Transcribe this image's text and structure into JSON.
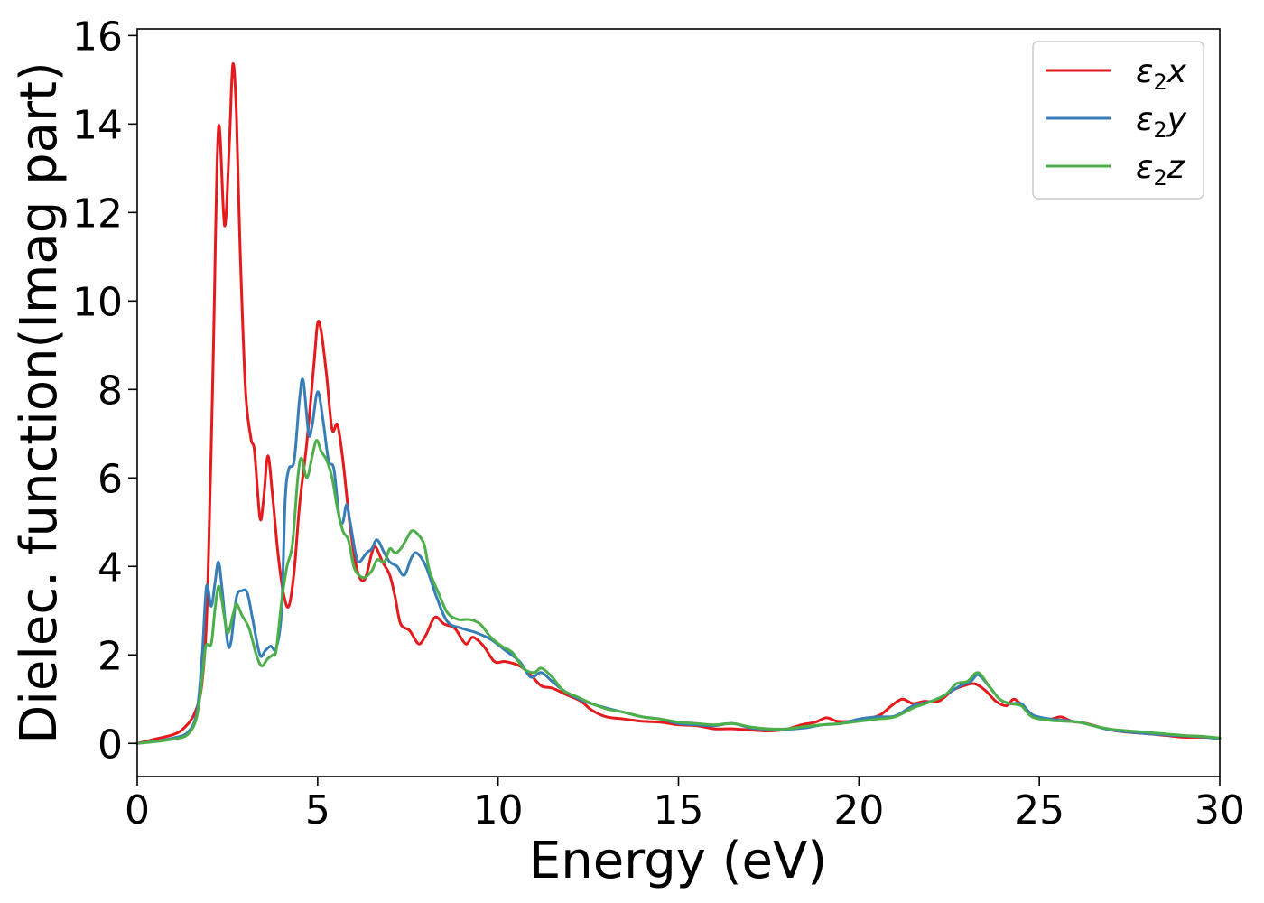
{
  "chart_data": {
    "type": "line",
    "xlabel": "Energy (eV)",
    "ylabel": "Dielec. function(Imag part)",
    "xlim": [
      0,
      30
    ],
    "ylim": [
      -0.75,
      16.15
    ],
    "xticks": [
      0,
      5,
      10,
      15,
      20,
      25,
      30
    ],
    "yticks": [
      0,
      2,
      4,
      6,
      8,
      10,
      12,
      14,
      16
    ],
    "grid": false,
    "legend_position": "top-right",
    "series": [
      {
        "name": "ε₂x",
        "legend_main": "ε",
        "legend_sub": "2",
        "legend_tail": "x",
        "color": "#e41a1c",
        "points": [
          [
            0,
            0
          ],
          [
            0.5,
            0.1
          ],
          [
            1.0,
            0.2
          ],
          [
            1.3,
            0.35
          ],
          [
            1.6,
            0.7
          ],
          [
            1.8,
            1.4
          ],
          [
            1.95,
            3.4
          ],
          [
            2.1,
            8.5
          ],
          [
            2.25,
            13.9
          ],
          [
            2.42,
            11.7
          ],
          [
            2.55,
            13.5
          ],
          [
            2.65,
            15.35
          ],
          [
            2.75,
            14.2
          ],
          [
            2.85,
            11.2
          ],
          [
            3.0,
            8.0
          ],
          [
            3.15,
            6.9
          ],
          [
            3.25,
            6.6
          ],
          [
            3.4,
            5.1
          ],
          [
            3.5,
            5.5
          ],
          [
            3.62,
            6.5
          ],
          [
            3.75,
            5.6
          ],
          [
            3.9,
            4.3
          ],
          [
            4.05,
            3.4
          ],
          [
            4.2,
            3.1
          ],
          [
            4.35,
            3.9
          ],
          [
            4.5,
            5.4
          ],
          [
            4.7,
            6.8
          ],
          [
            4.9,
            8.6
          ],
          [
            5.0,
            9.5
          ],
          [
            5.1,
            9.3
          ],
          [
            5.25,
            8.3
          ],
          [
            5.4,
            7.1
          ],
          [
            5.55,
            7.2
          ],
          [
            5.7,
            6.4
          ],
          [
            5.9,
            4.9
          ],
          [
            6.1,
            3.9
          ],
          [
            6.3,
            3.7
          ],
          [
            6.5,
            4.3
          ],
          [
            6.6,
            4.45
          ],
          [
            6.8,
            4.1
          ],
          [
            7.0,
            3.8
          ],
          [
            7.15,
            3.3
          ],
          [
            7.3,
            2.7
          ],
          [
            7.55,
            2.55
          ],
          [
            7.8,
            2.25
          ],
          [
            8.0,
            2.45
          ],
          [
            8.25,
            2.85
          ],
          [
            8.5,
            2.7
          ],
          [
            8.8,
            2.6
          ],
          [
            9.1,
            2.25
          ],
          [
            9.3,
            2.4
          ],
          [
            9.6,
            2.2
          ],
          [
            9.9,
            1.85
          ],
          [
            10.2,
            1.85
          ],
          [
            10.6,
            1.75
          ],
          [
            10.9,
            1.55
          ],
          [
            11.2,
            1.3
          ],
          [
            11.5,
            1.25
          ],
          [
            11.9,
            1.1
          ],
          [
            12.3,
            0.95
          ],
          [
            12.6,
            0.75
          ],
          [
            13.0,
            0.6
          ],
          [
            13.5,
            0.55
          ],
          [
            14.0,
            0.5
          ],
          [
            14.5,
            0.48
          ],
          [
            15.0,
            0.42
          ],
          [
            15.5,
            0.4
          ],
          [
            16.0,
            0.33
          ],
          [
            16.5,
            0.33
          ],
          [
            17.0,
            0.3
          ],
          [
            17.5,
            0.28
          ],
          [
            18.0,
            0.32
          ],
          [
            18.4,
            0.42
          ],
          [
            18.8,
            0.48
          ],
          [
            19.1,
            0.58
          ],
          [
            19.4,
            0.5
          ],
          [
            19.8,
            0.5
          ],
          [
            20.2,
            0.55
          ],
          [
            20.6,
            0.65
          ],
          [
            20.9,
            0.85
          ],
          [
            21.2,
            1.0
          ],
          [
            21.5,
            0.9
          ],
          [
            21.8,
            0.95
          ],
          [
            22.2,
            0.95
          ],
          [
            22.6,
            1.2
          ],
          [
            22.9,
            1.3
          ],
          [
            23.2,
            1.35
          ],
          [
            23.5,
            1.2
          ],
          [
            23.8,
            0.95
          ],
          [
            24.1,
            0.85
          ],
          [
            24.3,
            1.0
          ],
          [
            24.6,
            0.8
          ],
          [
            24.9,
            0.6
          ],
          [
            25.3,
            0.55
          ],
          [
            25.6,
            0.6
          ],
          [
            25.9,
            0.5
          ],
          [
            26.3,
            0.45
          ],
          [
            27.0,
            0.3
          ],
          [
            27.5,
            0.25
          ],
          [
            28.0,
            0.22
          ],
          [
            28.5,
            0.18
          ],
          [
            29.0,
            0.14
          ],
          [
            29.5,
            0.14
          ],
          [
            30.0,
            0.12
          ]
        ]
      },
      {
        "name": "ε₂y",
        "legend_main": "ε",
        "legend_sub": "2",
        "legend_tail": "y",
        "color": "#377eb8",
        "points": [
          [
            0,
            0
          ],
          [
            0.5,
            0.05
          ],
          [
            1.0,
            0.12
          ],
          [
            1.4,
            0.25
          ],
          [
            1.65,
            0.7
          ],
          [
            1.8,
            2.0
          ],
          [
            1.92,
            3.55
          ],
          [
            2.05,
            3.1
          ],
          [
            2.15,
            3.6
          ],
          [
            2.25,
            4.1
          ],
          [
            2.35,
            3.5
          ],
          [
            2.5,
            2.3
          ],
          [
            2.6,
            2.3
          ],
          [
            2.75,
            3.3
          ],
          [
            2.9,
            3.45
          ],
          [
            3.05,
            3.4
          ],
          [
            3.2,
            2.8
          ],
          [
            3.4,
            2.0
          ],
          [
            3.55,
            2.1
          ],
          [
            3.7,
            2.2
          ],
          [
            3.85,
            2.15
          ],
          [
            4.0,
            3.0
          ],
          [
            4.1,
            5.5
          ],
          [
            4.2,
            6.2
          ],
          [
            4.35,
            6.4
          ],
          [
            4.5,
            7.8
          ],
          [
            4.6,
            8.2
          ],
          [
            4.75,
            7.0
          ],
          [
            4.85,
            7.2
          ],
          [
            5.0,
            7.95
          ],
          [
            5.15,
            7.3
          ],
          [
            5.3,
            6.4
          ],
          [
            5.45,
            6.2
          ],
          [
            5.6,
            5.1
          ],
          [
            5.7,
            5.0
          ],
          [
            5.8,
            5.4
          ],
          [
            5.9,
            5.0
          ],
          [
            6.05,
            4.3
          ],
          [
            6.15,
            4.1
          ],
          [
            6.35,
            4.3
          ],
          [
            6.5,
            4.4
          ],
          [
            6.65,
            4.6
          ],
          [
            6.85,
            4.3
          ],
          [
            7.0,
            4.1
          ],
          [
            7.2,
            4.0
          ],
          [
            7.4,
            3.8
          ],
          [
            7.6,
            4.2
          ],
          [
            7.75,
            4.3
          ],
          [
            8.0,
            4.0
          ],
          [
            8.3,
            3.3
          ],
          [
            8.6,
            2.75
          ],
          [
            9.0,
            2.6
          ],
          [
            9.4,
            2.5
          ],
          [
            9.8,
            2.35
          ],
          [
            10.2,
            2.1
          ],
          [
            10.6,
            1.85
          ],
          [
            10.9,
            1.5
          ],
          [
            11.2,
            1.6
          ],
          [
            11.5,
            1.4
          ],
          [
            11.9,
            1.15
          ],
          [
            12.4,
            0.95
          ],
          [
            13.0,
            0.8
          ],
          [
            13.5,
            0.7
          ],
          [
            14.0,
            0.6
          ],
          [
            14.5,
            0.55
          ],
          [
            15.0,
            0.45
          ],
          [
            15.5,
            0.42
          ],
          [
            16.0,
            0.4
          ],
          [
            16.5,
            0.45
          ],
          [
            17.0,
            0.35
          ],
          [
            17.5,
            0.32
          ],
          [
            18.0,
            0.32
          ],
          [
            18.5,
            0.35
          ],
          [
            19.0,
            0.42
          ],
          [
            19.5,
            0.45
          ],
          [
            20.0,
            0.55
          ],
          [
            20.5,
            0.6
          ],
          [
            21.0,
            0.62
          ],
          [
            21.5,
            0.85
          ],
          [
            22.0,
            0.95
          ],
          [
            22.4,
            1.1
          ],
          [
            22.8,
            1.3
          ],
          [
            23.1,
            1.4
          ],
          [
            23.3,
            1.55
          ],
          [
            23.6,
            1.3
          ],
          [
            23.9,
            1.0
          ],
          [
            24.2,
            0.9
          ],
          [
            24.5,
            0.9
          ],
          [
            24.8,
            0.65
          ],
          [
            25.3,
            0.55
          ],
          [
            25.7,
            0.52
          ],
          [
            26.1,
            0.48
          ],
          [
            26.5,
            0.4
          ],
          [
            27.0,
            0.3
          ],
          [
            28.0,
            0.22
          ],
          [
            29.0,
            0.17
          ],
          [
            29.5,
            0.15
          ],
          [
            30.0,
            0.1
          ]
        ]
      },
      {
        "name": "ε₂z",
        "legend_main": "ε",
        "legend_sub": "2",
        "legend_tail": "z",
        "color": "#4daf4a",
        "points": [
          [
            0,
            0
          ],
          [
            0.5,
            0.04
          ],
          [
            1.0,
            0.1
          ],
          [
            1.4,
            0.2
          ],
          [
            1.65,
            0.6
          ],
          [
            1.8,
            1.5
          ],
          [
            1.9,
            2.2
          ],
          [
            2.05,
            2.25
          ],
          [
            2.15,
            3.0
          ],
          [
            2.25,
            3.55
          ],
          [
            2.35,
            3.2
          ],
          [
            2.5,
            2.5
          ],
          [
            2.65,
            2.9
          ],
          [
            2.75,
            3.15
          ],
          [
            2.9,
            2.9
          ],
          [
            3.1,
            2.6
          ],
          [
            3.3,
            2.0
          ],
          [
            3.45,
            1.75
          ],
          [
            3.6,
            1.9
          ],
          [
            3.75,
            2.0
          ],
          [
            3.85,
            2.1
          ],
          [
            4.0,
            3.2
          ],
          [
            4.15,
            4.0
          ],
          [
            4.3,
            4.5
          ],
          [
            4.45,
            6.0
          ],
          [
            4.55,
            6.45
          ],
          [
            4.7,
            6.0
          ],
          [
            4.85,
            6.5
          ],
          [
            4.97,
            6.85
          ],
          [
            5.1,
            6.6
          ],
          [
            5.25,
            6.4
          ],
          [
            5.4,
            6.0
          ],
          [
            5.55,
            5.3
          ],
          [
            5.7,
            4.8
          ],
          [
            5.85,
            4.6
          ],
          [
            6.0,
            4.0
          ],
          [
            6.15,
            3.8
          ],
          [
            6.3,
            3.75
          ],
          [
            6.5,
            3.9
          ],
          [
            6.65,
            4.15
          ],
          [
            6.85,
            4.1
          ],
          [
            7.0,
            4.4
          ],
          [
            7.15,
            4.3
          ],
          [
            7.3,
            4.4
          ],
          [
            7.45,
            4.6
          ],
          [
            7.6,
            4.8
          ],
          [
            7.75,
            4.75
          ],
          [
            7.95,
            4.5
          ],
          [
            8.1,
            3.9
          ],
          [
            8.35,
            3.4
          ],
          [
            8.6,
            2.95
          ],
          [
            8.9,
            2.8
          ],
          [
            9.2,
            2.8
          ],
          [
            9.5,
            2.7
          ],
          [
            9.8,
            2.4
          ],
          [
            10.1,
            2.2
          ],
          [
            10.4,
            2.05
          ],
          [
            10.7,
            1.7
          ],
          [
            11.0,
            1.6
          ],
          [
            11.2,
            1.7
          ],
          [
            11.5,
            1.5
          ],
          [
            11.8,
            1.2
          ],
          [
            12.2,
            1.05
          ],
          [
            12.6,
            0.9
          ],
          [
            13.0,
            0.78
          ],
          [
            13.5,
            0.7
          ],
          [
            14.0,
            0.6
          ],
          [
            14.5,
            0.55
          ],
          [
            15.0,
            0.48
          ],
          [
            15.5,
            0.45
          ],
          [
            16.0,
            0.42
          ],
          [
            16.5,
            0.45
          ],
          [
            17.0,
            0.37
          ],
          [
            17.5,
            0.33
          ],
          [
            18.0,
            0.33
          ],
          [
            18.5,
            0.38
          ],
          [
            19.0,
            0.42
          ],
          [
            19.5,
            0.45
          ],
          [
            20.0,
            0.5
          ],
          [
            20.5,
            0.55
          ],
          [
            21.0,
            0.6
          ],
          [
            21.5,
            0.8
          ],
          [
            22.0,
            0.95
          ],
          [
            22.4,
            1.1
          ],
          [
            22.7,
            1.35
          ],
          [
            23.0,
            1.4
          ],
          [
            23.3,
            1.6
          ],
          [
            23.6,
            1.3
          ],
          [
            23.9,
            1.0
          ],
          [
            24.2,
            0.9
          ],
          [
            24.5,
            0.85
          ],
          [
            24.8,
            0.6
          ],
          [
            25.3,
            0.52
          ],
          [
            25.7,
            0.5
          ],
          [
            26.1,
            0.48
          ],
          [
            26.5,
            0.4
          ],
          [
            27.0,
            0.32
          ],
          [
            28.0,
            0.25
          ],
          [
            29.0,
            0.18
          ],
          [
            29.5,
            0.16
          ],
          [
            30.0,
            0.12
          ]
        ]
      }
    ]
  }
}
